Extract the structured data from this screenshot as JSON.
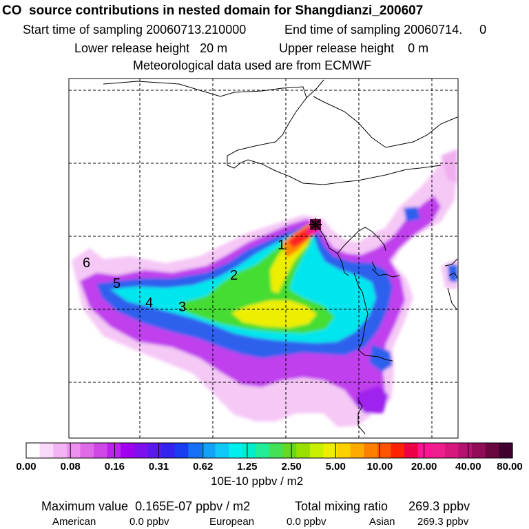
{
  "header": {
    "title": "CO  source contributions in nested domain for Shangdianzi_200607",
    "start_time": "Start time of sampling 20060713.210000",
    "end_time": "End time of sampling 20060714.     0",
    "lower_release": "Lower release height   20 m",
    "upper_release": "Upper release height    0 m",
    "met_source": "Meteorological data used are from ECMWF"
  },
  "map": {
    "trajectory_labels": [
      "1",
      "2",
      "3",
      "4",
      "5",
      "6"
    ],
    "receptor_marker": "star-icon"
  },
  "colorbar": {
    "tick_labels": [
      "0.00",
      "0.08",
      "0.16",
      "0.31",
      "0.62",
      "1.25",
      "2.50",
      "5.00",
      "10.00",
      "20.00",
      "40.00",
      "80.00"
    ],
    "units": "10E-10 ppbv / m2",
    "colors": [
      "#ffffff",
      "#f9d9f9",
      "#f3b4f3",
      "#ee90ee",
      "#e06be6",
      "#cf47e6",
      "#bb22ee",
      "#a000ee",
      "#7f10ee",
      "#5a1aee",
      "#3323ee",
      "#1a3cf0",
      "#1470f5",
      "#12a2f7",
      "#10c8f7",
      "#00eeee",
      "#00eecc",
      "#22ee99",
      "#44e055",
      "#66d822",
      "#99e000",
      "#c8ee00",
      "#eeee00",
      "#ffd000",
      "#ffaa00",
      "#ff8000",
      "#ff5500",
      "#ff2200",
      "#ee0044",
      "#ff1493",
      "#ee1e8c",
      "#d6187c",
      "#b4126e",
      "#900c56",
      "#6a0640",
      "#400030"
    ]
  },
  "summary": {
    "max_label": "Maximum value",
    "max_value": "0.165E-07 ppbv / m2",
    "total_label": "Total mixing ratio",
    "total_value": "269.3 ppbv",
    "american_label": "American",
    "american_value": "0.0 ppbv",
    "european_label": "European",
    "european_value": "0.0 ppbv",
    "asian_label": "Asian",
    "asian_value": "269.3 ppbv"
  }
}
